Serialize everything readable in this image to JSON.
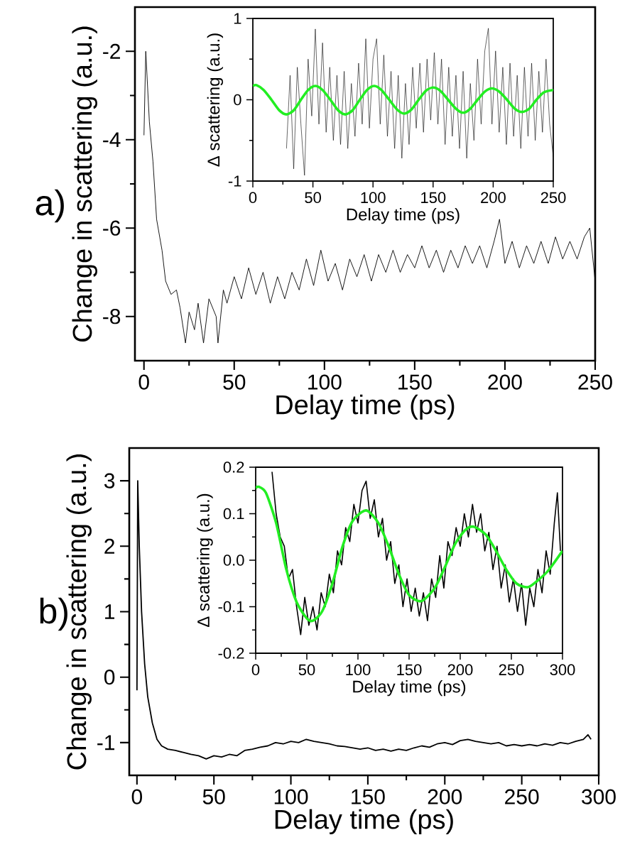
{
  "chart_data": [
    {
      "type": "line",
      "title": "a)",
      "xlabel": "Delay time (ps)",
      "ylabel": "Change in scattering (a.u.)",
      "xlim": [
        -5,
        250
      ],
      "ylim": [
        -9,
        -1
      ],
      "xticks": [
        0,
        50,
        100,
        150,
        200,
        250
      ],
      "yticks": [
        -8,
        -6,
        -4,
        -2
      ],
      "series": [
        {
          "color": "#000000",
          "x": [
            0,
            1,
            3,
            5,
            7,
            10,
            12,
            15,
            18,
            20,
            23,
            25,
            28,
            30,
            33,
            36,
            40,
            41,
            44,
            46,
            50,
            54,
            58,
            62,
            66,
            70,
            74,
            78,
            82,
            86,
            90,
            94,
            98,
            102,
            106,
            110,
            114,
            118,
            122,
            126,
            130,
            134,
            138,
            142,
            146,
            150,
            154,
            158,
            162,
            166,
            170,
            174,
            178,
            182,
            186,
            190,
            194,
            197,
            200,
            204,
            208,
            212,
            216,
            220,
            224,
            228,
            232,
            236,
            240,
            244,
            247,
            250
          ],
          "values": [
            -3.9,
            -2.0,
            -3.6,
            -4.5,
            -5.8,
            -6.5,
            -7.2,
            -7.5,
            -7.4,
            -7.8,
            -8.6,
            -7.9,
            -8.3,
            -7.7,
            -8.6,
            -7.6,
            -8.0,
            -8.6,
            -7.4,
            -7.7,
            -7.1,
            -7.6,
            -6.9,
            -7.5,
            -7.0,
            -7.7,
            -7.1,
            -7.6,
            -7.0,
            -7.4,
            -6.7,
            -7.3,
            -6.5,
            -7.2,
            -6.8,
            -7.4,
            -6.7,
            -7.1,
            -6.6,
            -7.2,
            -6.6,
            -7.0,
            -6.5,
            -7.0,
            -6.6,
            -6.9,
            -6.4,
            -6.9,
            -6.5,
            -7.0,
            -6.5,
            -6.9,
            -6.4,
            -6.8,
            -6.4,
            -6.9,
            -6.3,
            -5.8,
            -6.8,
            -6.3,
            -6.9,
            -6.4,
            -6.8,
            -6.3,
            -6.8,
            -6.2,
            -6.7,
            -6.3,
            -6.7,
            -6.2,
            -6.0,
            -7.2
          ]
        }
      ]
    },
    {
      "type": "line",
      "xlabel": "Delay time (ps)",
      "ylabel": "Δ scattering (a.u.)",
      "xlim": [
        0,
        250
      ],
      "ylim": [
        -1,
        1
      ],
      "xticks": [
        0,
        50,
        100,
        150,
        200,
        250
      ],
      "yticks": [
        -1,
        0,
        1
      ],
      "series": [
        {
          "color": "#000000",
          "x": [
            28,
            31,
            34,
            37,
            40,
            43,
            46,
            49,
            52,
            55,
            58,
            61,
            64,
            67,
            70,
            73,
            76,
            79,
            82,
            85,
            88,
            91,
            94,
            97,
            100,
            103,
            106,
            109,
            112,
            115,
            118,
            121,
            124,
            127,
            130,
            133,
            136,
            139,
            142,
            145,
            148,
            151,
            154,
            157,
            160,
            163,
            166,
            169,
            172,
            175,
            178,
            181,
            184,
            187,
            190,
            193,
            196,
            199,
            202,
            205,
            208,
            211,
            214,
            217,
            220,
            223,
            226,
            229,
            232,
            235,
            238,
            241,
            244,
            247,
            250
          ],
          "values": [
            -0.6,
            0.3,
            -0.85,
            0.4,
            -0.3,
            -0.93,
            0.5,
            -0.2,
            0.87,
            -0.3,
            0.7,
            -0.4,
            0.4,
            -0.5,
            0.3,
            -0.55,
            0.35,
            -0.6,
            0.2,
            -0.45,
            0.45,
            -0.3,
            0.75,
            -0.35,
            0.5,
            0.75,
            -0.3,
            0.55,
            -0.45,
            0.35,
            -0.6,
            0.3,
            -0.72,
            0.2,
            -0.55,
            0.4,
            -0.35,
            0.45,
            -0.4,
            0.5,
            -0.25,
            0.58,
            -0.3,
            0.5,
            -0.55,
            0.4,
            -0.45,
            0.3,
            -0.6,
            0.35,
            -0.72,
            0.2,
            -0.5,
            0.5,
            -0.3,
            0.6,
            0.88,
            -0.3,
            0.6,
            -0.4,
            0.4,
            -0.55,
            0.45,
            -0.45,
            0.3,
            -0.6,
            0.4,
            -0.45,
            0.45,
            -0.5,
            0.35,
            -0.4,
            0.5,
            -0.3,
            -0.7
          ]
        },
        {
          "color": "#22ee22",
          "x": [
            0,
            3,
            9,
            15.5,
            22,
            28,
            34,
            40,
            46,
            52,
            58,
            64.5,
            71,
            77,
            83,
            89,
            95,
            101,
            107,
            113.5,
            120,
            126,
            132,
            138,
            144,
            150,
            156,
            162.5,
            169,
            175,
            181,
            187,
            193,
            199,
            205,
            211.5,
            218,
            224,
            230,
            236,
            242,
            250
          ],
          "values": [
            0.17,
            0.18,
            0.12,
            0,
            -0.13,
            -0.18,
            -0.13,
            0,
            0.12,
            0.17,
            0.12,
            0,
            -0.13,
            -0.18,
            -0.13,
            0,
            0.12,
            0.17,
            0.12,
            0,
            -0.12,
            -0.17,
            -0.12,
            0,
            0.11,
            0.15,
            0.11,
            0,
            -0.11,
            -0.16,
            -0.11,
            0,
            0.1,
            0.14,
            0.1,
            0,
            -0.11,
            -0.15,
            -0.11,
            0,
            0.09,
            0.12
          ]
        }
      ]
    },
    {
      "type": "line",
      "title": "b)",
      "xlabel": "Delay time (ps)",
      "ylabel": "Change in scattering (a.u.)",
      "xlim": [
        -5,
        300
      ],
      "ylim": [
        -1.5,
        3.5
      ],
      "xticks": [
        0,
        50,
        100,
        150,
        200,
        250,
        300
      ],
      "yticks": [
        -1,
        0,
        1,
        2,
        3
      ],
      "series": [
        {
          "color": "#000000",
          "x": [
            0,
            0.5,
            1.5,
            3,
            5,
            7,
            10,
            13,
            16,
            20,
            25,
            30,
            35,
            40,
            45,
            50,
            55,
            60,
            65,
            70,
            75,
            80,
            85,
            90,
            95,
            100,
            105,
            110,
            115,
            120,
            125,
            130,
            135,
            140,
            145,
            150,
            155,
            160,
            165,
            170,
            175,
            180,
            185,
            190,
            195,
            200,
            205,
            210,
            215,
            220,
            225,
            230,
            235,
            240,
            245,
            250,
            255,
            260,
            265,
            270,
            275,
            280,
            285,
            290,
            293,
            295
          ],
          "values": [
            -0.2,
            3.0,
            2.0,
            1.0,
            0.2,
            -0.3,
            -0.7,
            -0.95,
            -1.05,
            -1.1,
            -1.12,
            -1.15,
            -1.18,
            -1.2,
            -1.25,
            -1.2,
            -1.22,
            -1.18,
            -1.2,
            -1.12,
            -1.1,
            -1.07,
            -1.05,
            -1.0,
            -1.02,
            -0.98,
            -1.0,
            -0.95,
            -0.98,
            -1.0,
            -1.02,
            -1.05,
            -1.06,
            -1.08,
            -1.1,
            -1.08,
            -1.12,
            -1.1,
            -1.13,
            -1.1,
            -1.12,
            -1.08,
            -1.05,
            -1.07,
            -1.02,
            -1.0,
            -1.03,
            -0.97,
            -0.95,
            -0.98,
            -1.0,
            -1.02,
            -1.0,
            -1.05,
            -1.03,
            -1.05,
            -1.03,
            -1.05,
            -1.02,
            -1.04,
            -1.0,
            -1.02,
            -0.98,
            -0.95,
            -0.88,
            -0.95
          ]
        }
      ]
    },
    {
      "type": "line",
      "xlabel": "Delay time (ps)",
      "ylabel": "Δ scattering (a.u.)",
      "xlim": [
        0,
        300
      ],
      "ylim": [
        -0.2,
        0.2
      ],
      "xticks": [
        0,
        50,
        100,
        150,
        200,
        250,
        300
      ],
      "yticks": [
        -0.2,
        -0.1,
        {
          "value": 0,
          "label": "0.0"
        },
        0.1,
        0.2
      ],
      "series": [
        {
          "color": "#000000",
          "x": [
            16,
            20,
            24,
            28,
            32,
            36,
            40,
            44,
            48,
            52,
            56,
            60,
            64,
            68,
            72,
            76,
            80,
            84,
            88,
            92,
            96,
            100,
            104,
            108,
            112,
            116,
            120,
            124,
            128,
            132,
            136,
            140,
            144,
            148,
            152,
            156,
            160,
            164,
            168,
            172,
            176,
            180,
            184,
            188,
            192,
            196,
            200,
            204,
            208,
            212,
            216,
            220,
            224,
            228,
            232,
            236,
            240,
            244,
            248,
            252,
            256,
            260,
            264,
            268,
            272,
            276,
            280,
            284,
            288,
            292,
            295,
            298
          ],
          "values": [
            0.19,
            0.1,
            0.05,
            0.03,
            -0.04,
            -0.02,
            -0.1,
            -0.16,
            -0.08,
            -0.14,
            -0.1,
            -0.15,
            -0.07,
            -0.1,
            -0.03,
            -0.07,
            0.02,
            -0.01,
            0.07,
            0.04,
            0.12,
            0.08,
            0.15,
            0.17,
            0.09,
            0.13,
            0.05,
            0.09,
            0.0,
            0.04,
            -0.05,
            -0.01,
            -0.1,
            -0.04,
            -0.11,
            -0.06,
            -0.12,
            -0.07,
            -0.13,
            -0.04,
            -0.08,
            0.01,
            -0.06,
            0.04,
            0.01,
            0.07,
            0.03,
            0.1,
            0.05,
            0.12,
            0.06,
            0.1,
            0.02,
            0.06,
            -0.02,
            0.03,
            -0.06,
            -0.01,
            -0.09,
            -0.04,
            -0.11,
            -0.05,
            -0.14,
            -0.06,
            -0.1,
            -0.02,
            -0.07,
            0.02,
            -0.03,
            0.08,
            0.145,
            0.02
          ]
        },
        {
          "color": "#22ee22",
          "x": [
            0,
            3,
            10,
            20,
            30,
            40,
            50,
            56,
            65,
            75,
            85,
            95,
            108,
            120,
            130,
            140,
            150,
            162,
            175,
            185,
            195,
            205,
            213,
            225,
            235,
            245,
            255,
            266,
            275,
            285,
            292,
            300
          ],
          "values": [
            0.155,
            0.158,
            0.145,
            0.08,
            -0.02,
            -0.09,
            -0.125,
            -0.13,
            -0.11,
            -0.05,
            0.03,
            0.085,
            0.107,
            0.08,
            0.03,
            -0.03,
            -0.075,
            -0.088,
            -0.06,
            -0.015,
            0.035,
            0.065,
            0.072,
            0.055,
            0.02,
            -0.02,
            -0.05,
            -0.058,
            -0.045,
            -0.025,
            -0.005,
            0.02
          ]
        }
      ]
    }
  ]
}
